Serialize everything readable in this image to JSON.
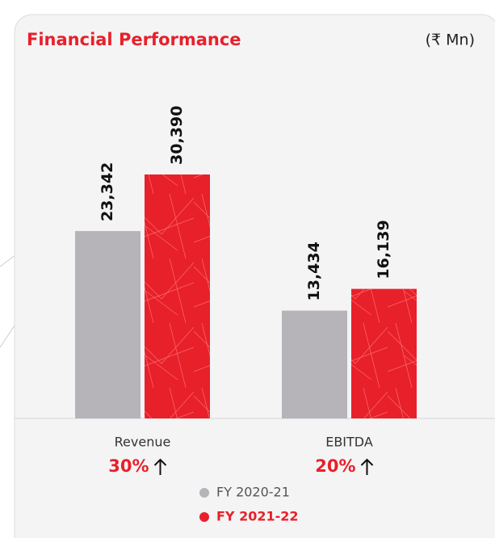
{
  "chart_data": {
    "type": "bar",
    "title": "Financial Performance",
    "unit_label": "(₹ Mn)",
    "categories": [
      "Revenue",
      "EBITDA"
    ],
    "growth_labels": [
      "30%",
      "20%"
    ],
    "series": [
      {
        "name": "FY 2020-21",
        "color": "#b6b3b9",
        "values": [
          23342,
          13434
        ],
        "value_labels": [
          "23,342",
          "13,434"
        ]
      },
      {
        "name": "FY 2021-22",
        "color": "#e8202a",
        "values": [
          30390,
          16139
        ],
        "value_labels": [
          "30,390",
          "16,139"
        ]
      }
    ]
  }
}
